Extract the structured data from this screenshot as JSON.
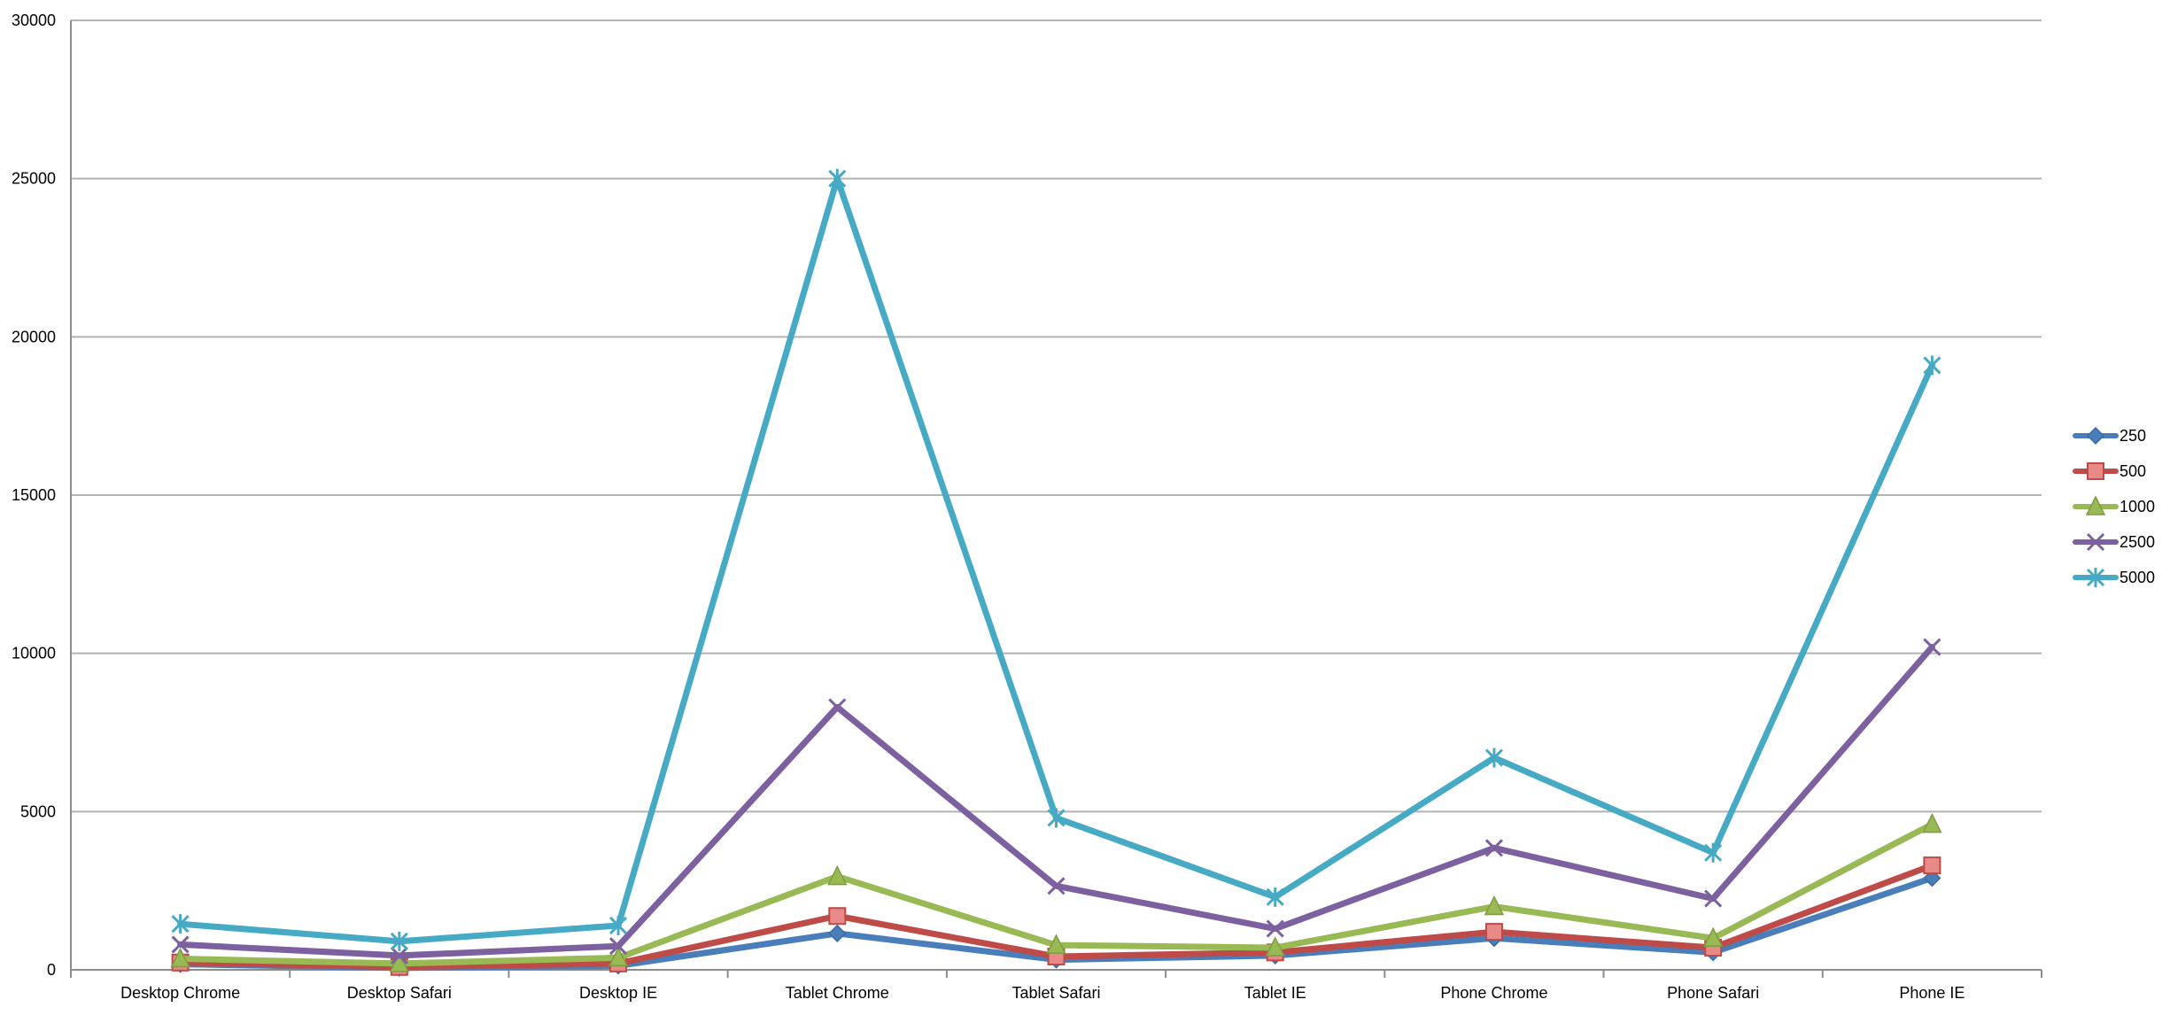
{
  "chart_data": {
    "type": "line",
    "title": "",
    "xlabel": "",
    "ylabel": "",
    "ylim": [
      0,
      30000
    ],
    "yticks": [
      0,
      5000,
      10000,
      15000,
      20000,
      25000,
      30000
    ],
    "grid": true,
    "legend_position": "right",
    "categories": [
      "Desktop Chrome",
      "Desktop Safari",
      "Desktop IE",
      "Tablet Chrome",
      "Tablet Safari",
      "Tablet IE",
      "Phone Chrome",
      "Phone Safari",
      "Phone IE"
    ],
    "series": [
      {
        "name": "250",
        "color": "#4a7ebb",
        "marker": "diamond",
        "values": [
          180,
          60,
          130,
          1150,
          320,
          450,
          1000,
          550,
          2900
        ]
      },
      {
        "name": "500",
        "color": "#be4b48",
        "marker": "square",
        "values": [
          230,
          90,
          200,
          1700,
          420,
          550,
          1200,
          700,
          3300
        ]
      },
      {
        "name": "1000",
        "color": "#98b954",
        "marker": "triangle",
        "values": [
          350,
          200,
          380,
          2950,
          780,
          700,
          2000,
          1000,
          4600
        ]
      },
      {
        "name": "2500",
        "color": "#7d60a0",
        "marker": "x",
        "values": [
          800,
          450,
          750,
          8300,
          2650,
          1300,
          3850,
          2250,
          10200
        ]
      },
      {
        "name": "5000",
        "color": "#46aac5",
        "marker": "star",
        "values": [
          1450,
          900,
          1400,
          25000,
          4800,
          2300,
          6700,
          3700,
          19100
        ]
      }
    ]
  }
}
